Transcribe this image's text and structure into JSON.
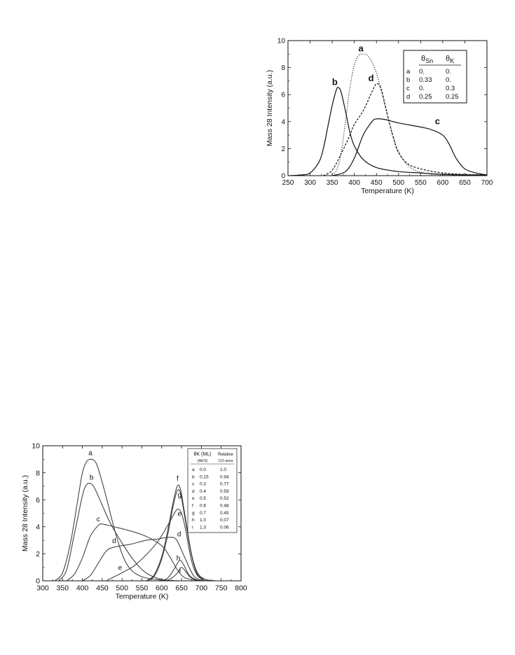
{
  "chart_data": [
    {
      "type": "line",
      "xlabel": "Temperature (K)",
      "ylabel": "Mass 28 Intensity (a.u.)",
      "xlim": [
        250,
        700
      ],
      "ylim": [
        0,
        10
      ],
      "x_ticks": [
        "250",
        "300",
        "350",
        "400",
        "450",
        "500",
        "550",
        "600",
        "650",
        "700"
      ],
      "y_ticks": [
        "0",
        "2",
        "4",
        "6",
        "8",
        "10"
      ],
      "legend": {
        "position": "top-right",
        "headers": [
          "θSn",
          "θK"
        ],
        "rows": [
          {
            "id": "a",
            "c1": "0.",
            "c2": "0."
          },
          {
            "id": "b",
            "c1": "0.33",
            "c2": "0."
          },
          {
            "id": "c",
            "c1": "0.",
            "c2": "0.3"
          },
          {
            "id": "d",
            "c1": "0.25",
            "c2": "0.25"
          }
        ]
      },
      "series": [
        {
          "name": "a",
          "style": "dotted",
          "points": [
            [
              350,
              0.1
            ],
            [
              360,
              0.4
            ],
            [
              370,
              1.6
            ],
            [
              380,
              4.0
            ],
            [
              390,
              6.5
            ],
            [
              400,
              8.2
            ],
            [
              410,
              8.9
            ],
            [
              420,
              9.0
            ],
            [
              430,
              8.9
            ],
            [
              440,
              8.4
            ],
            [
              450,
              7.6
            ],
            [
              460,
              6.4
            ],
            [
              470,
              5.1
            ],
            [
              480,
              3.8
            ],
            [
              490,
              2.7
            ],
            [
              500,
              1.8
            ],
            [
              520,
              0.8
            ],
            [
              550,
              0.25
            ],
            [
              600,
              0.05
            ],
            [
              650,
              0.02
            ]
          ]
        },
        {
          "name": "b",
          "style": "solid",
          "points": [
            [
              250,
              0.0
            ],
            [
              280,
              0.05
            ],
            [
              300,
              0.2
            ],
            [
              320,
              1.0
            ],
            [
              330,
              2.0
            ],
            [
              340,
              3.6
            ],
            [
              350,
              5.2
            ],
            [
              360,
              6.4
            ],
            [
              365,
              6.5
            ],
            [
              370,
              6.2
            ],
            [
              380,
              4.8
            ],
            [
              390,
              3.2
            ],
            [
              400,
              2.2
            ],
            [
              420,
              1.2
            ],
            [
              450,
              0.6
            ],
            [
              500,
              0.3
            ],
            [
              550,
              0.2
            ],
            [
              600,
              0.1
            ],
            [
              650,
              0.05
            ],
            [
              700,
              0.05
            ]
          ]
        },
        {
          "name": "c",
          "style": "solid",
          "points": [
            [
              350,
              0.0
            ],
            [
              380,
              0.3
            ],
            [
              400,
              1.3
            ],
            [
              420,
              3.0
            ],
            [
              440,
              4.0
            ],
            [
              450,
              4.2
            ],
            [
              470,
              4.15
            ],
            [
              500,
              3.9
            ],
            [
              550,
              3.6
            ],
            [
              575,
              3.4
            ],
            [
              600,
              3.0
            ],
            [
              615,
              2.3
            ],
            [
              630,
              1.3
            ],
            [
              650,
              0.5
            ],
            [
              675,
              0.2
            ],
            [
              700,
              0.05
            ]
          ]
        },
        {
          "name": "d",
          "style": "dashed",
          "points": [
            [
              330,
              0.0
            ],
            [
              350,
              0.4
            ],
            [
              370,
              1.6
            ],
            [
              390,
              3.0
            ],
            [
              400,
              3.8
            ],
            [
              420,
              4.8
            ],
            [
              440,
              6.2
            ],
            [
              450,
              6.8
            ],
            [
              460,
              6.5
            ],
            [
              470,
              5.2
            ],
            [
              480,
              3.8
            ],
            [
              490,
              2.6
            ],
            [
              500,
              1.7
            ],
            [
              520,
              0.9
            ],
            [
              550,
              0.5
            ],
            [
              600,
              0.2
            ],
            [
              650,
              0.1
            ],
            [
              700,
              0.05
            ]
          ]
        }
      ],
      "annotations": [
        {
          "text": "a",
          "x": 415,
          "y": 9.2
        },
        {
          "text": "b",
          "x": 356,
          "y": 6.7
        },
        {
          "text": "c",
          "x": 588,
          "y": 3.8
        },
        {
          "text": "d",
          "x": 438,
          "y": 7.0
        }
      ]
    },
    {
      "type": "line",
      "xlabel": "Temperature (K)",
      "ylabel": "Mass 28 Intensity (a.u.)",
      "xlim": [
        300,
        800
      ],
      "ylim": [
        0,
        10
      ],
      "x_ticks": [
        "300",
        "350",
        "400",
        "450",
        "500",
        "550",
        "600",
        "650",
        "700",
        "750",
        "800"
      ],
      "y_ticks": [
        "0",
        "2",
        "4",
        "6",
        "8",
        "10"
      ],
      "legend": {
        "position": "top-right",
        "headers": [
          "θK (ML)",
          "Relative"
        ],
        "subheaders": [
          "(AES)",
          "CO area"
        ],
        "rows": [
          {
            "id": "a",
            "c1": "0.0",
            "c2": "1.0"
          },
          {
            "id": "b",
            "c1": "0.15",
            "c2": "0.94"
          },
          {
            "id": "c",
            "c1": "0.3",
            "c2": "0.77"
          },
          {
            "id": "d",
            "c1": "0.4",
            "c2": "0.59"
          },
          {
            "id": "e",
            "c1": "0.5",
            "c2": "0.52"
          },
          {
            "id": "f",
            "c1": "0.6",
            "c2": "0.48"
          },
          {
            "id": "g",
            "c1": "0.7",
            "c2": "0.45"
          },
          {
            "id": "h",
            "c1": "1.0",
            "c2": "0.07"
          },
          {
            "id": "i",
            "c1": "1.3",
            "c2": "0.06"
          }
        ]
      },
      "series": [
        {
          "name": "a",
          "points": [
            [
              330,
              0.0
            ],
            [
              350,
              0.6
            ],
            [
              370,
              2.8
            ],
            [
              390,
              6.3
            ],
            [
              400,
              8.0
            ],
            [
              410,
              8.8
            ],
            [
              420,
              9.0
            ],
            [
              430,
              8.9
            ],
            [
              440,
              8.3
            ],
            [
              460,
              6.2
            ],
            [
              480,
              3.9
            ],
            [
              500,
              2.0
            ],
            [
              520,
              0.9
            ],
            [
              550,
              0.3
            ],
            [
              600,
              0.05
            ],
            [
              650,
              0.0
            ]
          ]
        },
        {
          "name": "b",
          "points": [
            [
              340,
              0.0
            ],
            [
              360,
              0.8
            ],
            [
              380,
              3.5
            ],
            [
              400,
              6.3
            ],
            [
              410,
              7.1
            ],
            [
              420,
              7.2
            ],
            [
              430,
              6.9
            ],
            [
              450,
              5.6
            ],
            [
              470,
              4.3
            ],
            [
              500,
              2.8
            ],
            [
              530,
              1.5
            ],
            [
              560,
              0.6
            ],
            [
              600,
              0.1
            ],
            [
              650,
              0.0
            ]
          ]
        },
        {
          "name": "c",
          "points": [
            [
              360,
              0.0
            ],
            [
              380,
              0.5
            ],
            [
              400,
              1.7
            ],
            [
              420,
              3.3
            ],
            [
              440,
              4.1
            ],
            [
              450,
              4.2
            ],
            [
              480,
              4.0
            ],
            [
              520,
              3.7
            ],
            [
              560,
              3.3
            ],
            [
              600,
              2.6
            ],
            [
              620,
              1.8
            ],
            [
              640,
              0.8
            ],
            [
              660,
              0.2
            ],
            [
              700,
              0.0
            ]
          ]
        },
        {
          "name": "d",
          "points": [
            [
              400,
              0.0
            ],
            [
              420,
              0.4
            ],
            [
              440,
              1.3
            ],
            [
              460,
              2.2
            ],
            [
              480,
              2.5
            ],
            [
              520,
              2.7
            ],
            [
              560,
              3.0
            ],
            [
              590,
              3.1
            ],
            [
              610,
              3.2
            ],
            [
              630,
              3.2
            ],
            [
              640,
              2.9
            ],
            [
              660,
              1.6
            ],
            [
              680,
              0.4
            ],
            [
              700,
              0.05
            ],
            [
              720,
              0.0
            ]
          ]
        },
        {
          "name": "e",
          "points": [
            [
              460,
              0.0
            ],
            [
              480,
              0.3
            ],
            [
              500,
              0.6
            ],
            [
              530,
              1.1
            ],
            [
              560,
              1.9
            ],
            [
              590,
              2.9
            ],
            [
              615,
              4.1
            ],
            [
              630,
              4.9
            ],
            [
              640,
              5.3
            ],
            [
              650,
              5.0
            ],
            [
              660,
              3.8
            ],
            [
              675,
              1.5
            ],
            [
              690,
              0.4
            ],
            [
              710,
              0.0
            ]
          ]
        },
        {
          "name": "f",
          "points": [
            [
              560,
              0.0
            ],
            [
              580,
              0.4
            ],
            [
              600,
              1.8
            ],
            [
              615,
              3.7
            ],
            [
              630,
              6.0
            ],
            [
              640,
              7.05
            ],
            [
              648,
              6.7
            ],
            [
              660,
              4.6
            ],
            [
              675,
              2.0
            ],
            [
              690,
              0.6
            ],
            [
              710,
              0.1
            ],
            [
              730,
              0.0
            ]
          ]
        },
        {
          "name": "g",
          "points": [
            [
              560,
              0.0
            ],
            [
              580,
              0.3
            ],
            [
              600,
              1.6
            ],
            [
              615,
              3.4
            ],
            [
              630,
              5.7
            ],
            [
              640,
              6.7
            ],
            [
              648,
              6.4
            ],
            [
              660,
              4.4
            ],
            [
              675,
              1.9
            ],
            [
              690,
              0.5
            ],
            [
              710,
              0.1
            ],
            [
              740,
              0.0
            ]
          ]
        },
        {
          "name": "h",
          "points": [
            [
              600,
              0.0
            ],
            [
              615,
              0.2
            ],
            [
              630,
              0.8
            ],
            [
              645,
              1.5
            ],
            [
              655,
              1.2
            ],
            [
              670,
              0.4
            ],
            [
              690,
              0.05
            ],
            [
              710,
              0.0
            ]
          ]
        },
        {
          "name": "i",
          "points": [
            [
              610,
              0.0
            ],
            [
              625,
              0.2
            ],
            [
              640,
              0.6
            ],
            [
              650,
              1.0
            ],
            [
              660,
              0.7
            ],
            [
              675,
              0.2
            ],
            [
              700,
              0.0
            ]
          ]
        }
      ],
      "annotations": [
        {
          "text": "a",
          "x": 420,
          "y": 9.3
        },
        {
          "text": "b",
          "x": 423,
          "y": 7.5
        },
        {
          "text": "c",
          "x": 440,
          "y": 4.4
        },
        {
          "text": "d",
          "x": 480,
          "y": 2.8
        },
        {
          "text": "e",
          "x": 495,
          "y": 0.8
        },
        {
          "text": "f",
          "x": 640,
          "y": 7.4
        },
        {
          "text": "g",
          "x": 645,
          "y": 6.2
        },
        {
          "text": "e",
          "x": 645,
          "y": 4.8
        },
        {
          "text": "d",
          "x": 644,
          "y": 3.3
        },
        {
          "text": "h",
          "x": 642,
          "y": 1.5
        },
        {
          "text": "i",
          "x": 646,
          "y": 0.6
        }
      ]
    }
  ]
}
